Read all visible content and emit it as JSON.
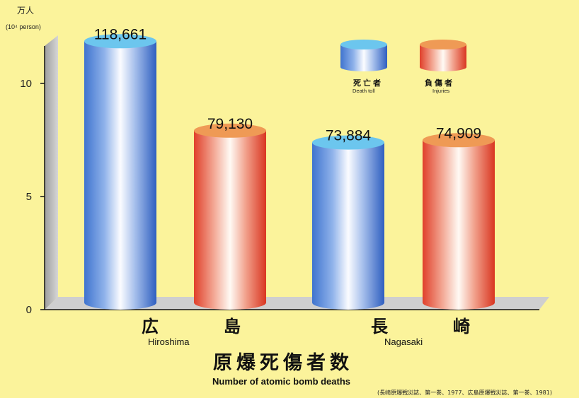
{
  "chart_data": {
    "type": "bar",
    "style": "3d-cylinder",
    "categories": [
      "広　島",
      "長　崎"
    ],
    "category_subtitles": [
      "Hiroshima",
      "Nagasaki"
    ],
    "series": [
      {
        "name": "死亡者",
        "name_en": "Death toll",
        "values": [
          118661,
          73884
        ],
        "value_labels": [
          "118,661",
          "73,884"
        ],
        "color": "#5b8fd8"
      },
      {
        "name": "負傷者",
        "name_en": "Injuries",
        "values": [
          79130,
          74909
        ],
        "value_labels": [
          "79,130",
          "74,909"
        ],
        "color": "#e8482e"
      }
    ],
    "ylim": [
      0,
      120000
    ],
    "yticks": [
      {
        "value": 0,
        "label": "0"
      },
      {
        "value": 50000,
        "label": "5"
      },
      {
        "value": 100000,
        "label": "10"
      }
    ],
    "unit_label": "万人",
    "unit_label_en": "(10⁴ person)",
    "title": "原爆死傷者数",
    "subtitle": "Number of atomic bomb deaths",
    "source": "(長崎原爆戦災誌、第一巻、1977、広島原爆戦災誌、第一巻、1981)",
    "legend_position": "top-right",
    "grid": false
  },
  "colors": {
    "background": "#fbf39b",
    "blue_cap": "#6cc6ee",
    "orange_cap": "#ef9a55",
    "wall": "#c8c8c8"
  }
}
